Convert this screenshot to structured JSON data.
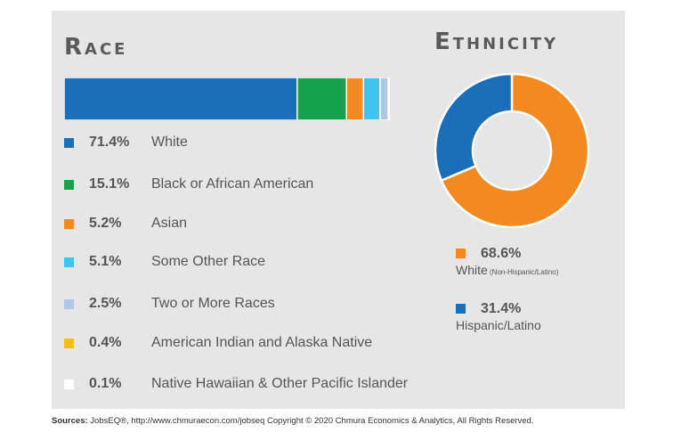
{
  "chart_data": [
    {
      "type": "bar",
      "orientation": "horizontal-stacked",
      "title": "Race",
      "unit": "%",
      "categories": [
        "White",
        "Black or African American",
        "Asian",
        "Some Other Race",
        "Two or More Races",
        "American Indian and Alaska Native",
        "Native Hawaiian & Other Pacific Islander"
      ],
      "values": [
        71.4,
        15.1,
        5.2,
        5.1,
        2.5,
        0.4,
        0.1
      ],
      "labels": [
        "71.4%",
        "15.1%",
        "5.2%",
        "5.1%",
        "2.5%",
        "0.4%",
        "0.1%"
      ],
      "colors": [
        "#1b6fb8",
        "#14a24b",
        "#f38a20",
        "#3fc3ef",
        "#b3c6e3",
        "#f9bf15",
        "#ffffff"
      ]
    },
    {
      "type": "pie",
      "style": "donut",
      "title": "Ethnicity",
      "unit": "%",
      "categories": [
        "White",
        "Hispanic/Latino"
      ],
      "values": [
        68.6,
        31.4
      ],
      "labels": [
        "68.6%",
        "31.4%"
      ],
      "notes": [
        "(Non-Hispanic/Latino)",
        ""
      ],
      "colors": [
        "#f38a20",
        "#1b6fb8"
      ]
    }
  ],
  "footer": {
    "source_label": "Sources:",
    "source_text": " JobsEQ®, http://www.chmuraecon.com/jobseq Copyright © 2020 Chmura Economics & Analytics, All Rights Reserved."
  }
}
